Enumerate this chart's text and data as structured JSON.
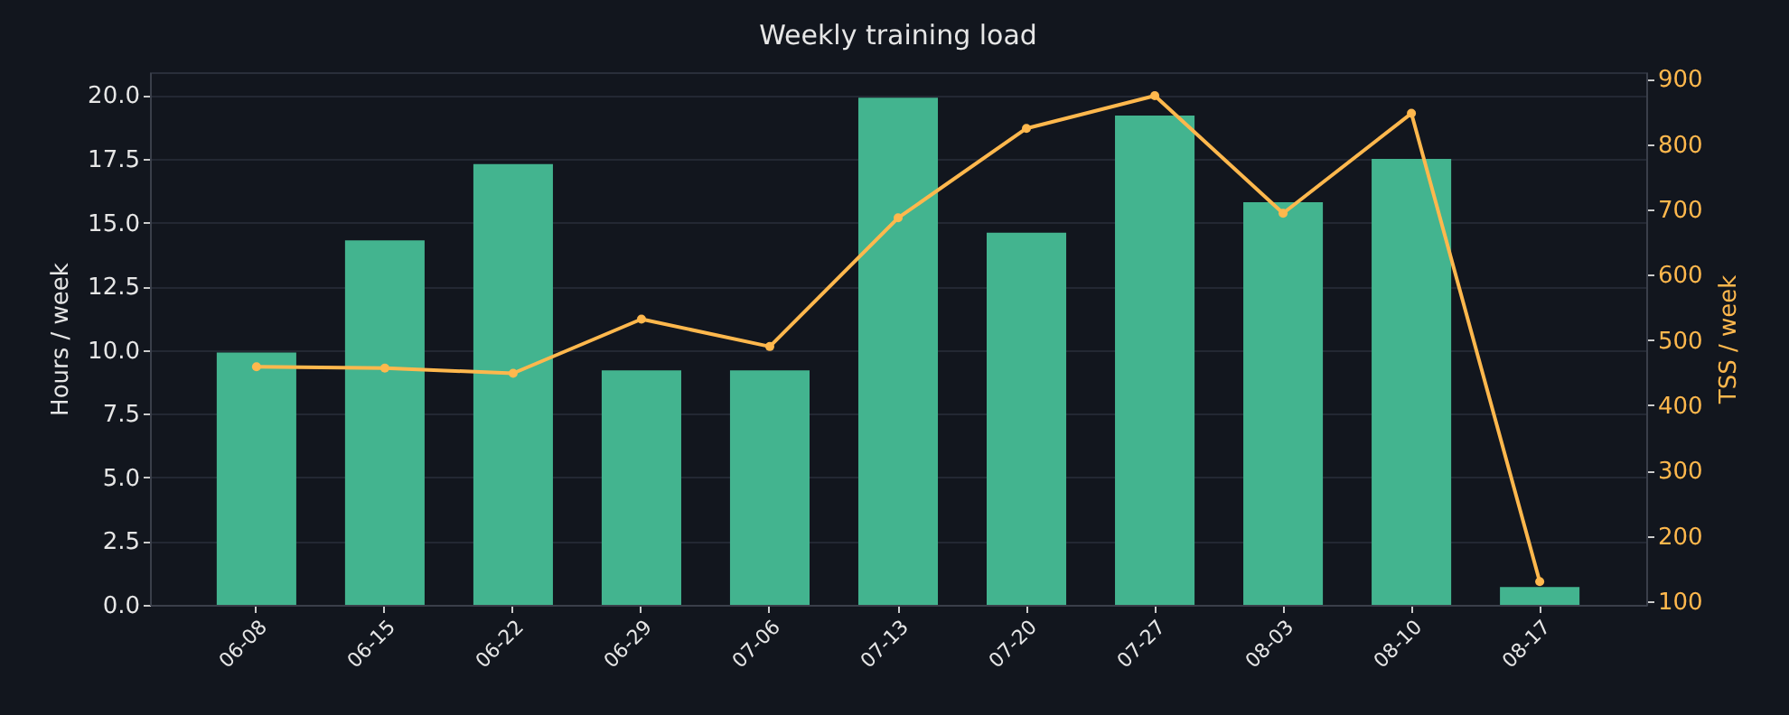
{
  "chart_data": {
    "type": "bar",
    "title": "Weekly training load",
    "ylabel": "Hours / week",
    "y2label": "TSS / week",
    "categories": [
      "06-08",
      "06-15",
      "06-22",
      "06-29",
      "07-06",
      "07-13",
      "07-20",
      "07-27",
      "08-03",
      "08-10",
      "08-17"
    ],
    "series": [
      {
        "color": "#43b48f",
        "values": [
          9.9,
          14.3,
          17.3,
          9.2,
          9.2,
          19.9,
          14.6,
          19.2,
          15.8,
          17.5,
          0.7
        ]
      },
      {
        "type": "line",
        "axis": "y2",
        "color": "#ffb84d",
        "marker": "circle",
        "line_style": "solid",
        "values": [
          459,
          457,
          449,
          532,
          490,
          687,
          824,
          874,
          694,
          847,
          130
        ]
      }
    ],
    "ylim": [
      0,
      20.9
    ],
    "yticks": [
      {
        "value": 0,
        "label": "0.0"
      },
      {
        "value": 2.5,
        "label": "2.5"
      },
      {
        "value": 5,
        "label": "5.0"
      },
      {
        "value": 7.5,
        "label": "7.5"
      },
      {
        "value": 10,
        "label": "10.0"
      },
      {
        "value": 12.5,
        "label": "12.5"
      },
      {
        "value": 15,
        "label": "15.0"
      },
      {
        "value": 17.5,
        "label": "17.5"
      },
      {
        "value": 20,
        "label": "20.0"
      }
    ],
    "y2lim": [
      94.5,
      910
    ],
    "y2ticks": [
      100,
      200,
      300,
      400,
      500,
      600,
      700,
      800,
      900
    ],
    "grid": "y"
  }
}
